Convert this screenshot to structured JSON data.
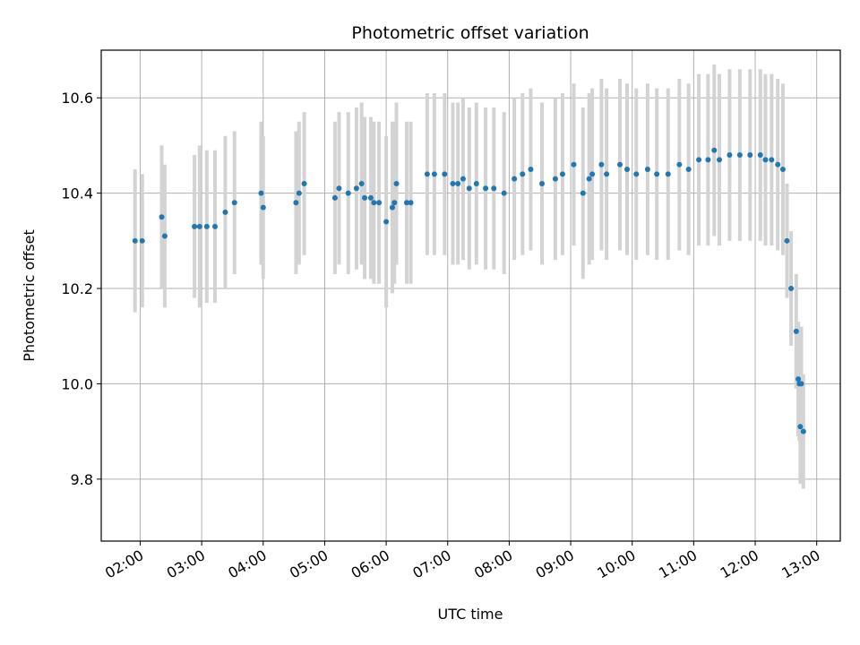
{
  "chart_data": {
    "type": "scatter",
    "title": "Photometric offset variation",
    "xlabel": "UTC time",
    "ylabel": "Photometric offset",
    "x_ticks": [
      "02:00",
      "03:00",
      "04:00",
      "05:00",
      "06:00",
      "07:00",
      "08:00",
      "09:00",
      "10:00",
      "11:00",
      "12:00",
      "13:00"
    ],
    "y_ticks": [
      "9.8",
      "10.0",
      "10.2",
      "10.4",
      "10.6"
    ],
    "xlim": [
      "01:22",
      "13:23"
    ],
    "ylim": [
      9.67,
      10.7
    ],
    "grid": true,
    "point_color": "#1f77b4",
    "errorbar_color": "#d3d3d3",
    "series": [
      {
        "x": [
          "01:55",
          "02:02",
          "02:21",
          "02:24",
          "02:53",
          "02:58",
          "03:05",
          "03:13",
          "03:23",
          "03:32",
          "03:58",
          "04:00",
          "04:32",
          "04:35",
          "04:40",
          "05:10",
          "05:14",
          "05:23",
          "05:31",
          "05:36",
          "05:39",
          "05:45",
          "05:48",
          "05:53",
          "06:00",
          "06:06",
          "06:08",
          "06:10",
          "06:20",
          "06:24",
          "06:40",
          "06:47",
          "06:57",
          "07:05",
          "07:10",
          "07:15",
          "07:21",
          "07:28",
          "07:37",
          "07:45",
          "07:55",
          "08:05",
          "08:13",
          "08:21",
          "08:32",
          "08:45",
          "08:52",
          "09:03",
          "09:12",
          "09:18",
          "09:21",
          "09:30",
          "09:35",
          "09:48",
          "09:55",
          "10:04",
          "10:15",
          "10:24",
          "10:35",
          "10:46",
          "10:55",
          "11:05",
          "11:14",
          "11:20",
          "11:25",
          "11:35",
          "11:45",
          "11:55",
          "12:05",
          "12:10",
          "12:16",
          "12:22",
          "12:27",
          "12:31",
          "12:35",
          "12:40",
          "12:42",
          "12:43",
          "12:44",
          "12:45",
          "12:47"
        ],
        "y": [
          10.3,
          10.3,
          10.35,
          10.31,
          10.33,
          10.33,
          10.33,
          10.33,
          10.36,
          10.38,
          10.4,
          10.37,
          10.38,
          10.4,
          10.42,
          10.39,
          10.41,
          10.4,
          10.41,
          10.42,
          10.39,
          10.39,
          10.38,
          10.38,
          10.34,
          10.37,
          10.38,
          10.42,
          10.38,
          10.38,
          10.44,
          10.44,
          10.44,
          10.42,
          10.42,
          10.43,
          10.41,
          10.42,
          10.41,
          10.41,
          10.4,
          10.43,
          10.44,
          10.45,
          10.42,
          10.43,
          10.44,
          10.46,
          10.4,
          10.43,
          10.44,
          10.46,
          10.44,
          10.46,
          10.45,
          10.44,
          10.45,
          10.44,
          10.44,
          10.46,
          10.45,
          10.47,
          10.47,
          10.49,
          10.47,
          10.48,
          10.48,
          10.48,
          10.48,
          10.47,
          10.47,
          10.46,
          10.45,
          10.3,
          10.2,
          10.11,
          10.01,
          10.0,
          9.91,
          10.0,
          9.9
        ],
        "err": [
          0.15,
          0.14,
          0.15,
          0.15,
          0.15,
          0.17,
          0.16,
          0.16,
          0.16,
          0.15,
          0.15,
          0.15,
          0.15,
          0.15,
          0.15,
          0.16,
          0.16,
          0.17,
          0.17,
          0.17,
          0.17,
          0.17,
          0.17,
          0.17,
          0.18,
          0.18,
          0.17,
          0.17,
          0.17,
          0.17,
          0.17,
          0.17,
          0.17,
          0.17,
          0.17,
          0.17,
          0.17,
          0.17,
          0.17,
          0.17,
          0.17,
          0.17,
          0.17,
          0.17,
          0.17,
          0.17,
          0.17,
          0.17,
          0.18,
          0.18,
          0.18,
          0.18,
          0.18,
          0.18,
          0.18,
          0.18,
          0.18,
          0.18,
          0.18,
          0.18,
          0.18,
          0.18,
          0.18,
          0.18,
          0.18,
          0.18,
          0.18,
          0.18,
          0.18,
          0.18,
          0.18,
          0.18,
          0.18,
          0.12,
          0.12,
          0.12,
          0.12,
          0.12,
          0.12,
          0.12,
          0.12
        ]
      }
    ]
  }
}
